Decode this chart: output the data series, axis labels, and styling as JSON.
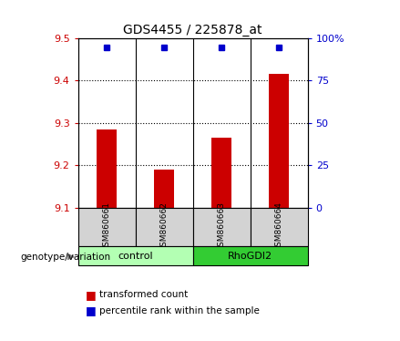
{
  "title": "GDS4455 / 225878_at",
  "samples": [
    "GSM860661",
    "GSM860662",
    "GSM860663",
    "GSM860664"
  ],
  "transformed_counts": [
    9.285,
    9.19,
    9.265,
    9.415
  ],
  "percentile_ranks": [
    94.5,
    94.3,
    94.5,
    94.6
  ],
  "ylim_left": [
    9.1,
    9.5
  ],
  "ylim_right": [
    0,
    100
  ],
  "yticks_left": [
    9.1,
    9.2,
    9.3,
    9.4,
    9.5
  ],
  "yticks_right": [
    0,
    25,
    50,
    75,
    100
  ],
  "yticklabels_right": [
    "0",
    "25",
    "50",
    "75",
    "100%"
  ],
  "bar_color": "#cc0000",
  "dot_color": "#0000cc",
  "bar_width": 0.35,
  "label_color_left": "#cc0000",
  "label_color_right": "#0000cc",
  "legend_bar_label": "transformed count",
  "legend_dot_label": "percentile rank within the sample",
  "genotype_label": "genotype/variation",
  "sample_box_color": "#d3d3d3",
  "group_box_light": "#b3ffb3",
  "group_box_dark": "#33cc33",
  "dotted_yticks": [
    9.2,
    9.3,
    9.4
  ],
  "control_label": "control",
  "rhogdi2_label": "RhoGDI2"
}
